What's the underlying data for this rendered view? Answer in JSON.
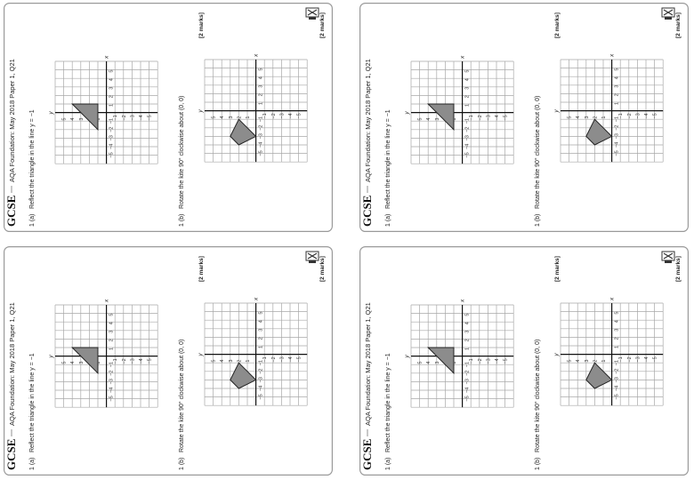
{
  "sheets": [
    {
      "brand": "GCSE",
      "source": "AQA Foundation: May 2018 Paper 1, Q21",
      "q_a_number": "1 (a)",
      "q_a_text": "Reflect the triangle in the line y = −1",
      "q_b_number": "1 (b)",
      "q_b_text": "Rotate the kite 90° clockwise about (0, 0)",
      "marks_a": "[2 marks]",
      "marks_b": "[2 marks]"
    },
    {
      "brand": "GCSE",
      "source": "AQA Foundation: May 2018 Paper 1, Q21",
      "q_a_number": "1 (a)",
      "q_a_text": "Reflect the triangle in the line y = −1",
      "q_b_number": "1 (b)",
      "q_b_text": "Rotate the kite 90° clockwise about (0, 0)",
      "marks_a": "[2 marks]",
      "marks_b": "[2 marks]"
    },
    {
      "brand": "GCSE",
      "source": "AQA Foundation: May 2018 Paper 1, Q21",
      "q_a_number": "1 (a)",
      "q_a_text": "Reflect the triangle in the line y = −1",
      "q_b_number": "1 (b)",
      "q_b_text": "Rotate the kite 90° clockwise about (0, 0)",
      "marks_a": "[2 marks]",
      "marks_b": "[2 marks]"
    },
    {
      "brand": "GCSE",
      "source": "AQA Foundation: May 2018 Paper 1, Q21",
      "q_a_number": "1 (a)",
      "q_a_text": "Reflect the triangle in the line y = −1",
      "q_b_number": "1 (b)",
      "q_b_text": "Rotate the kite 90° clockwise about (0, 0)",
      "marks_a": "[2 marks]",
      "marks_b": "[2 marks]"
    }
  ],
  "axes": {
    "x_label": "x",
    "y_label": "y",
    "tick_labels": [
      "−5",
      "−4",
      "−3",
      "−2",
      "−1",
      "1",
      "2",
      "3",
      "4",
      "5"
    ]
  },
  "colors": {
    "shape_fill": "#8c8c8c",
    "grid": "#a8a8a8"
  }
}
